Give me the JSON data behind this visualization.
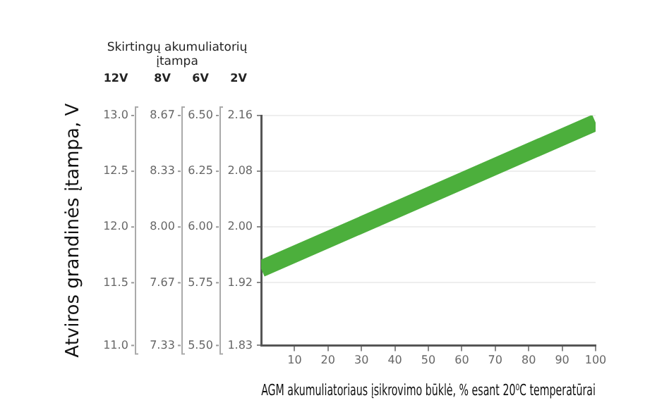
{
  "chart_data": {
    "type": "line",
    "subtitle": "Skirtingų akumuliatorių\nįtampa",
    "xlabel": "AGM akumuliatoriaus įsikrovimo būklė, % esant 20⁰C temperatūrai",
    "annotations": [
      "Atviros grandinės įtampa, V",
      "12V",
      "8V",
      "6V",
      "2V",
      "13.0",
      "12.5",
      "12.0",
      "11.5",
      "11.0",
      "8.67",
      "8.33",
      "8.00",
      "7.67",
      "7.33",
      "6.50",
      "6.25",
      "6.00",
      "5.75",
      "5.50"
    ],
    "x": [
      0,
      100
    ],
    "series": [
      {
        "color": "#4caf3c",
        "values": [
          1.94,
          2.15
        ]
      }
    ],
    "xlim": [
      0,
      100
    ],
    "xticks": [
      10,
      20,
      30,
      40,
      50,
      60,
      70,
      80,
      90,
      100
    ],
    "ylim": [
      1.83,
      2.16
    ],
    "yticks": [
      1.83,
      1.92,
      {
        "value": 2,
        "label": "2.00"
      },
      2.08,
      2.16
    ],
    "grid": "y",
    "marker": "none",
    "line_style": "solid",
    "legend": false
  }
}
